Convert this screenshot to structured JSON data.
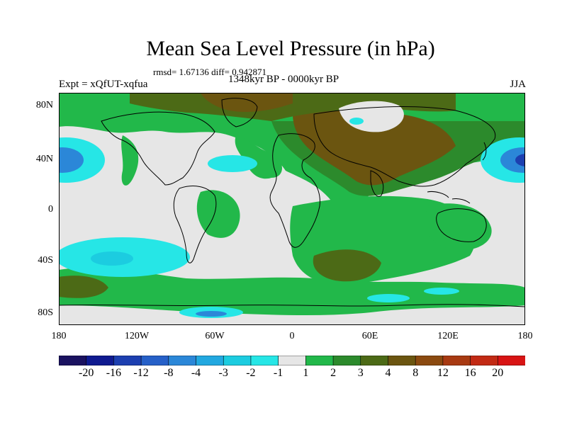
{
  "title": "Mean Sea Level Pressure (in hPa)",
  "stats": "rmsd= 1.67136 diff= 0.942871",
  "period": "1348kyr BP - 0000kyr BP",
  "experiment": "Expt = xQfUT-xqfua",
  "season": "JJA",
  "lat_labels": [
    "80N",
    "40N",
    "0",
    "40S",
    "80S"
  ],
  "lon_labels": [
    "180",
    "120W",
    "60W",
    "0",
    "60E",
    "120E",
    "180"
  ],
  "colorbar": {
    "labels": [
      "-20",
      "-16",
      "-12",
      "-8",
      "-4",
      "-3",
      "-2",
      "-1",
      "1",
      "2",
      "3",
      "4",
      "8",
      "12",
      "16",
      "20"
    ],
    "colors": [
      "#1a1260",
      "#0f1a90",
      "#1c3fb0",
      "#2660c8",
      "#2b87d8",
      "#22a8e0",
      "#1ccce0",
      "#26e6e6",
      "#e6e6e6",
      "#22b84a",
      "#2c8a2c",
      "#4c6a16",
      "#6b5510",
      "#8b4a10",
      "#a83a12",
      "#c22a14",
      "#d81414"
    ]
  },
  "colors": {
    "neutral": "#e6e6e6",
    "pos1": "#22b84a",
    "pos2": "#2c8a2c",
    "pos3": "#4c6a16",
    "pos4": "#6b5510",
    "neg1": "#26e6e6",
    "neg2": "#1ccce0",
    "neg3": "#2b87d8",
    "neg4": "#1c3fb0"
  }
}
